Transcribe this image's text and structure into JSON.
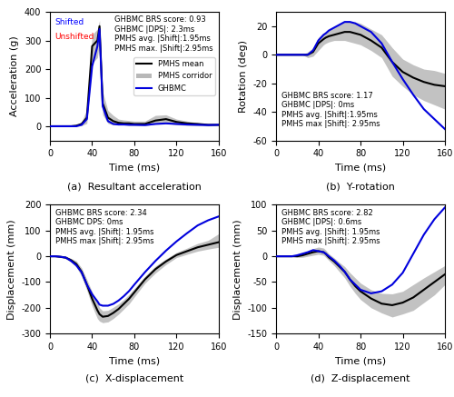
{
  "chart_data": [
    {
      "type": "line",
      "title": "(a)  Resultant acceleration",
      "x_label": "Time (ms)",
      "y_label": "Acceleration (g)",
      "x": [
        0,
        5,
        10,
        15,
        20,
        25,
        30,
        35,
        40,
        45,
        47,
        50,
        55,
        60,
        65,
        70,
        75,
        80,
        90,
        100,
        110,
        120,
        130,
        140,
        150,
        160
      ],
      "xlim": [
        0,
        160
      ],
      "ylim": [
        -50,
        400
      ],
      "xticks": [
        0,
        40,
        80,
        120,
        160
      ],
      "yticks": [
        0,
        100,
        200,
        300,
        400
      ],
      "series": [
        {
          "name": "PMHS mean",
          "color": "#000000",
          "values": [
            0,
            0,
            0,
            0,
            0,
            2,
            8,
            30,
            280,
            300,
            350,
            80,
            30,
            18,
            12,
            10,
            10,
            8,
            8,
            20,
            25,
            15,
            10,
            8,
            5,
            5
          ]
        },
        {
          "name": "PMHS corridor",
          "type": "area",
          "color": "#b8b8b8",
          "lower": [
            0,
            0,
            0,
            0,
            0,
            0,
            2,
            10,
            220,
            240,
            290,
            40,
            10,
            5,
            5,
            5,
            3,
            2,
            2,
            8,
            10,
            5,
            3,
            2,
            1,
            2
          ],
          "upper": [
            0,
            0,
            0,
            0,
            2,
            5,
            15,
            60,
            320,
            340,
            370,
            120,
            55,
            38,
            25,
            22,
            20,
            18,
            18,
            38,
            40,
            25,
            18,
            12,
            8,
            7
          ]
        },
        {
          "name": "GHBMC",
          "color": "#0000dd",
          "values": [
            0,
            0,
            0,
            0,
            0,
            0,
            5,
            25,
            210,
            280,
            340,
            70,
            18,
            8,
            6,
            6,
            5,
            5,
            4,
            8,
            10,
            8,
            6,
            5,
            4,
            5
          ]
        }
      ],
      "annotations": [
        {
          "text": "GHBMC BRS score: 0.93\nGHBMC |DPS|: 2.3ms\nPMHS avg. |Shift|:1.95ms\nPMHS max. |Shift|:2.95ms"
        },
        {
          "text": "Shifted",
          "color": "#0000ff"
        },
        {
          "text": "Unshifted",
          "color": "#ff0000"
        }
      ],
      "legend": "center right"
    },
    {
      "type": "line",
      "title": "(b)  Y-rotation",
      "x_label": "Time (ms)",
      "y_label": "Rotation (deg)",
      "x": [
        0,
        5,
        10,
        15,
        20,
        25,
        30,
        35,
        40,
        45,
        47,
        50,
        55,
        60,
        65,
        70,
        75,
        80,
        90,
        100,
        110,
        120,
        130,
        140,
        150,
        160
      ],
      "xlim": [
        0,
        160
      ],
      "ylim": [
        -60,
        30
      ],
      "xticks": [
        0,
        40,
        80,
        120,
        160
      ],
      "yticks": [
        -60,
        -40,
        -20,
        0,
        20
      ],
      "series": [
        {
          "name": "PMHS mean",
          "color": "#000000",
          "values": [
            0,
            0,
            0,
            0,
            0,
            0,
            0,
            2,
            8,
            11,
            12,
            13,
            14,
            15,
            16,
            16,
            15,
            14,
            10,
            5,
            -5,
            -12,
            -16,
            -19,
            -21,
            -22
          ]
        },
        {
          "name": "PMHS corridor",
          "type": "area",
          "color": "#b8b8b8",
          "lower": [
            0,
            0,
            0,
            0,
            0,
            0,
            -2,
            -1,
            3,
            7,
            8,
            9,
            10,
            10,
            10,
            9,
            8,
            7,
            3,
            -2,
            -15,
            -22,
            -28,
            -32,
            -35,
            -38
          ],
          "upper": [
            0,
            0,
            0,
            0,
            0,
            0,
            2,
            5,
            12,
            15,
            16,
            17,
            19,
            21,
            23,
            23,
            23,
            22,
            18,
            14,
            5,
            -3,
            -7,
            -10,
            -11,
            -13
          ]
        },
        {
          "name": "GHBMC",
          "color": "#0000dd",
          "values": [
            0,
            0,
            0,
            0,
            0,
            0,
            0,
            3,
            10,
            14,
            15,
            17,
            19,
            21,
            23,
            23,
            22,
            20,
            16,
            8,
            -5,
            -17,
            -28,
            -38,
            -45,
            -52
          ]
        }
      ],
      "annotations": [
        {
          "text": "GHBMC BRS score: 1.17\nGHBMC |DPS|: 0ms\nPMHS avg. |Shift|:1.95ms\nPMHS max |Shift|: 2.95ms"
        }
      ]
    },
    {
      "type": "line",
      "title": "(c)  X-displacement",
      "x_label": "Time (ms)",
      "y_label": "Displacement (mm)",
      "x": [
        0,
        5,
        10,
        15,
        20,
        25,
        30,
        35,
        40,
        45,
        47,
        50,
        55,
        60,
        65,
        70,
        75,
        80,
        90,
        100,
        110,
        120,
        130,
        140,
        150,
        160
      ],
      "xlim": [
        0,
        160
      ],
      "ylim": [
        -300,
        200
      ],
      "xticks": [
        0,
        40,
        80,
        120,
        160
      ],
      "yticks": [
        -300,
        -200,
        -100,
        0,
        100,
        200
      ],
      "series": [
        {
          "name": "PMHS mean",
          "color": "#000000",
          "values": [
            0,
            0,
            -2,
            -5,
            -15,
            -30,
            -60,
            -110,
            -165,
            -210,
            -225,
            -235,
            -232,
            -220,
            -205,
            -185,
            -165,
            -140,
            -90,
            -50,
            -20,
            5,
            20,
            35,
            45,
            55
          ]
        },
        {
          "name": "PMHS corridor",
          "type": "area",
          "color": "#b8b8b8",
          "lower": [
            0,
            0,
            -5,
            -10,
            -22,
            -42,
            -78,
            -132,
            -193,
            -242,
            -252,
            -258,
            -255,
            -242,
            -225,
            -205,
            -185,
            -158,
            -105,
            -65,
            -32,
            -5,
            8,
            20,
            28,
            35
          ],
          "upper": [
            0,
            0,
            0,
            -2,
            -8,
            -18,
            -45,
            -90,
            -138,
            -178,
            -200,
            -212,
            -210,
            -198,
            -185,
            -168,
            -148,
            -125,
            -78,
            -38,
            -10,
            15,
            32,
            50,
            62,
            88
          ]
        },
        {
          "name": "GHBMC",
          "color": "#0000dd",
          "values": [
            0,
            0,
            -2,
            -5,
            -18,
            -35,
            -62,
            -110,
            -148,
            -175,
            -188,
            -192,
            -192,
            -185,
            -172,
            -155,
            -135,
            -110,
            -62,
            -18,
            22,
            58,
            90,
            120,
            140,
            155
          ]
        }
      ],
      "annotations": [
        {
          "text": "GHBMC BRS score: 2.34\nGHBMC DPS: 0ms\nPMHS avg. |Shift|: 1.95ms\nPMHS max |Shift|: 2.95ms"
        }
      ]
    },
    {
      "type": "line",
      "title": "(d)  Z-displacement",
      "x_label": "Time (ms)",
      "y_label": "Displacement (mm)",
      "x": [
        0,
        5,
        10,
        15,
        20,
        25,
        30,
        35,
        40,
        45,
        47,
        50,
        55,
        60,
        65,
        70,
        75,
        80,
        90,
        100,
        110,
        120,
        130,
        140,
        150,
        160
      ],
      "xlim": [
        0,
        160
      ],
      "ylim": [
        -150,
        100
      ],
      "xticks": [
        0,
        40,
        80,
        120,
        160
      ],
      "yticks": [
        -150,
        -100,
        -50,
        0,
        50,
        100
      ],
      "series": [
        {
          "name": "PMHS mean",
          "color": "#000000",
          "values": [
            0,
            0,
            0,
            0,
            0,
            2,
            5,
            8,
            10,
            8,
            5,
            -2,
            -10,
            -20,
            -30,
            -45,
            -58,
            -68,
            -82,
            -92,
            -95,
            -90,
            -80,
            -65,
            -50,
            -35
          ]
        },
        {
          "name": "PMHS corridor",
          "type": "area",
          "color": "#b8b8b8",
          "lower": [
            0,
            0,
            0,
            0,
            -2,
            -2,
            0,
            2,
            4,
            2,
            -2,
            -8,
            -18,
            -30,
            -42,
            -58,
            -72,
            -84,
            -100,
            -110,
            -118,
            -112,
            -105,
            -90,
            -75,
            -55
          ],
          "upper": [
            0,
            0,
            0,
            0,
            2,
            5,
            10,
            15,
            18,
            16,
            12,
            5,
            -3,
            -12,
            -20,
            -32,
            -42,
            -52,
            -65,
            -72,
            -73,
            -68,
            -55,
            -42,
            -30,
            -18
          ]
        },
        {
          "name": "GHBMC",
          "color": "#0000dd",
          "values": [
            0,
            0,
            0,
            0,
            2,
            5,
            8,
            12,
            10,
            8,
            5,
            0,
            -8,
            -18,
            -30,
            -45,
            -55,
            -65,
            -72,
            -68,
            -55,
            -32,
            5,
            42,
            72,
            95
          ]
        }
      ],
      "annotations": [
        {
          "text": "GHBMC BRS score: 2.82\nGHBMC |DPS|: 0.6ms\nPMHS avg. |Shift|: 1.95ms\nPMHS max |Shift|: 2.95ms"
        }
      ]
    }
  ]
}
